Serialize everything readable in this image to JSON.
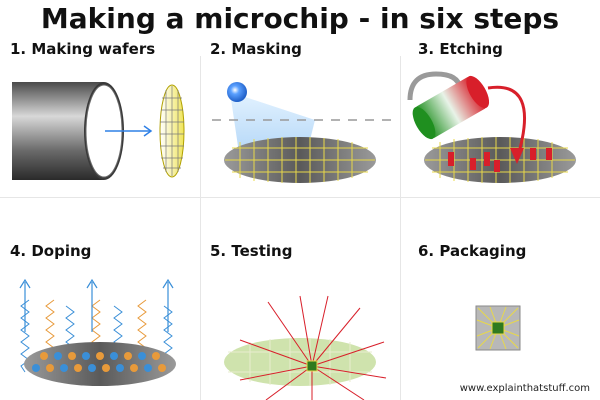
{
  "title": "Making a microchip - in six steps",
  "steps": [
    {
      "label": "1. Making wafers"
    },
    {
      "label": "2. Masking"
    },
    {
      "label": "3. Etching"
    },
    {
      "label": "4. Doping"
    },
    {
      "label": "5. Testing"
    },
    {
      "label": "6. Packaging"
    }
  ],
  "credit": "www.explainthatstuff.com",
  "colors": {
    "wafer_gray": "#8a8a8a",
    "grid_yellow": "#e8d84a",
    "etch_red": "#d81f2a",
    "light_blue": "#2f80e6",
    "doping_orange": "#e89a3a",
    "doping_blue": "#3a8fd8",
    "test_green": "#b9d88a",
    "chip_green": "#2f7a1f"
  }
}
